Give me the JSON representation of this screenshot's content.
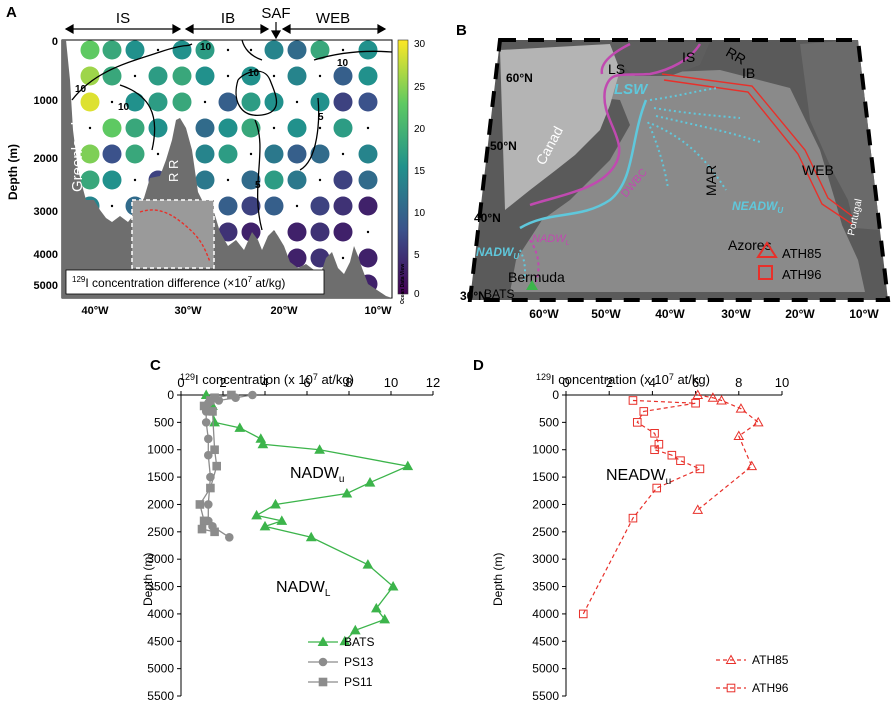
{
  "panels": {
    "a": {
      "letter": "A",
      "regions": [
        "IS",
        "IB",
        "SAF",
        "WEB"
      ],
      "ylabel": "Depth (m)",
      "yticks": [
        "0",
        "1000",
        "2000",
        "3000",
        "4000",
        "5000"
      ],
      "xticks": [
        "40°W",
        "30°W",
        "20°W",
        "10°W"
      ],
      "colorbar_ticks": [
        "30",
        "25",
        "20",
        "15",
        "10",
        "5",
        "0"
      ],
      "colorbar_caption": "Ocean Data View",
      "legend_text": "129I concentration difference (×10^7 at/kg)",
      "legend_sup": "129",
      "legend_main": "I concentration difference  (×10",
      "legend_exp": "7",
      "legend_tail": " at/kg)",
      "labels": {
        "greenland": "Greenland",
        "rr": "R R"
      },
      "contour_labels": [
        "10",
        "10",
        "10",
        "10",
        "5",
        "5",
        "10"
      ]
    },
    "b": {
      "letter": "B",
      "lat_labels": [
        "60°N",
        "50°N",
        "40°N",
        "30°N"
      ],
      "lon_labels": [
        "60°W",
        "50°W",
        "40°W",
        "30°W",
        "20°W",
        "10°W"
      ],
      "place_labels": {
        "ls": "LS",
        "is": "IS",
        "rr": "RR",
        "ib": "IB",
        "canada": "Canad",
        "mar": "MAR",
        "web": "WEB",
        "portugal": "Portugal",
        "azores": "Azores",
        "bermuda": "Bermuda",
        "bats": "BATS"
      },
      "current_labels": {
        "lsw": "LSW",
        "dwbc": "DWBC",
        "neadw": "NEADW",
        "neadw_sub": "U",
        "nadwu": "NADW",
        "nadwu_sub": "U",
        "nadwl": "NADW",
        "nadwl_sub": "L"
      },
      "legend": [
        {
          "label": "ATH85",
          "marker": "triangle"
        },
        {
          "label": "ATH96",
          "marker": "square"
        }
      ]
    },
    "c": {
      "letter": "C",
      "title_sup": "129",
      "title_main": "I concentration  (x 10",
      "title_exp": "7",
      "title_tail": " at/kg)",
      "ylabel": "Depth (m)",
      "annotations": [
        {
          "text": "NADW",
          "sub": "u"
        },
        {
          "text": "NADW",
          "sub": "L"
        }
      ]
    },
    "d": {
      "letter": "D",
      "title_sup": "129",
      "title_main": "I concentration  (x 10",
      "title_exp": "7",
      "title_tail": " at/kg)",
      "ylabel": "Depth (m)",
      "annotations": [
        {
          "text": "NEADW",
          "sub": "u"
        }
      ]
    }
  },
  "colors": {
    "bats": "#3cb44b",
    "ps13": "#8c8c8c",
    "ps11": "#8c8c8c",
    "ath": "#e8302a",
    "section": "#e8302a",
    "lsw_current": "#5fc8dc",
    "dwbc_current": "#c04ab0"
  },
  "chart_data": [
    {
      "panel": "C",
      "type": "line",
      "xlim": [
        0,
        12
      ],
      "ylim": [
        5500,
        0
      ],
      "xticks": [
        0,
        2,
        4,
        6,
        8,
        10,
        12
      ],
      "yticks": [
        0,
        500,
        1000,
        1500,
        2000,
        2500,
        3000,
        3500,
        4000,
        4500,
        5000,
        5500
      ],
      "series": [
        {
          "name": "BATS",
          "marker": "triangle",
          "points": [
            [
              1.2,
              0
            ],
            [
              1.3,
              100
            ],
            [
              1.5,
              200
            ],
            [
              1.6,
              500
            ],
            [
              2.8,
              600
            ],
            [
              3.8,
              800
            ],
            [
              3.9,
              900
            ],
            [
              6.6,
              1000
            ],
            [
              10.8,
              1300
            ],
            [
              9.0,
              1600
            ],
            [
              7.9,
              1800
            ],
            [
              4.5,
              2000
            ],
            [
              3.6,
              2200
            ],
            [
              4.8,
              2300
            ],
            [
              4.0,
              2400
            ],
            [
              6.2,
              2600
            ],
            [
              8.9,
              3100
            ],
            [
              10.1,
              3500
            ],
            [
              9.3,
              3900
            ],
            [
              9.7,
              4100
            ],
            [
              8.3,
              4300
            ],
            [
              7.8,
              4500
            ]
          ]
        },
        {
          "name": "PS13",
          "marker": "circle",
          "points": [
            [
              3.4,
              0
            ],
            [
              2.6,
              50
            ],
            [
              1.8,
              100
            ],
            [
              1.3,
              150
            ],
            [
              1.2,
              300
            ],
            [
              1.2,
              500
            ],
            [
              1.3,
              800
            ],
            [
              1.3,
              1100
            ],
            [
              1.4,
              1500
            ],
            [
              1.3,
              2000
            ],
            [
              1.3,
              2300
            ],
            [
              1.5,
              2400
            ],
            [
              2.3,
              2600
            ]
          ]
        },
        {
          "name": "PS11",
          "marker": "square",
          "points": [
            [
              2.4,
              0
            ],
            [
              1.6,
              50
            ],
            [
              1.4,
              100
            ],
            [
              1.1,
              200
            ],
            [
              1.5,
              300
            ],
            [
              1.6,
              1000
            ],
            [
              1.7,
              1300
            ],
            [
              1.4,
              1700
            ],
            [
              0.9,
              2000
            ],
            [
              1.1,
              2300
            ],
            [
              1.0,
              2450
            ],
            [
              1.6,
              2500
            ]
          ]
        }
      ]
    },
    {
      "panel": "D",
      "type": "line",
      "xlim": [
        0,
        10
      ],
      "ylim": [
        5500,
        0
      ],
      "xticks": [
        0,
        2,
        4,
        6,
        8,
        10
      ],
      "yticks": [
        0,
        500,
        1000,
        1500,
        2000,
        2500,
        3000,
        3500,
        4000,
        4500,
        5000,
        5500
      ],
      "series": [
        {
          "name": "ATH85",
          "marker": "triangle",
          "points": [
            [
              6.1,
              0
            ],
            [
              6.8,
              50
            ],
            [
              7.2,
              100
            ],
            [
              8.1,
              250
            ],
            [
              8.9,
              500
            ],
            [
              8.0,
              750
            ],
            [
              8.6,
              1300
            ],
            [
              6.1,
              2100
            ]
          ]
        },
        {
          "name": "ATH96",
          "marker": "square",
          "points": [
            [
              3.1,
              100
            ],
            [
              6.0,
              150
            ],
            [
              3.6,
              300
            ],
            [
              3.3,
              500
            ],
            [
              4.1,
              700
            ],
            [
              4.3,
              900
            ],
            [
              4.1,
              1000
            ],
            [
              4.9,
              1100
            ],
            [
              5.3,
              1200
            ],
            [
              6.2,
              1350
            ],
            [
              4.2,
              1700
            ],
            [
              3.1,
              2250
            ],
            [
              0.8,
              4000
            ]
          ]
        }
      ]
    }
  ]
}
